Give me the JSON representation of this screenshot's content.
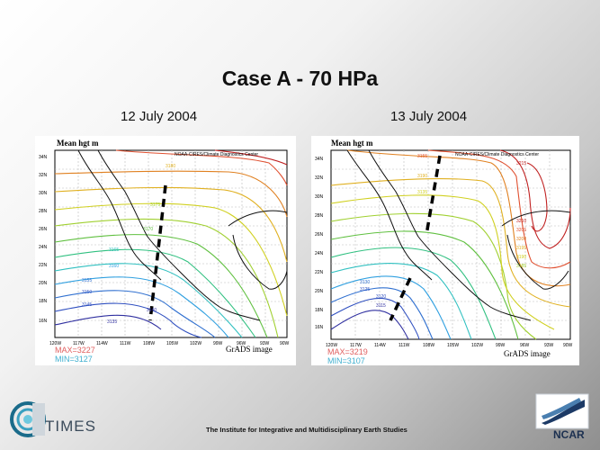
{
  "slide": {
    "title": "Case A - 70 HPa",
    "footer": "The Institute for Integrative and Multidisciplinary Earth Studies",
    "logo_left_text": "TIMES",
    "logo_right_text": "NCAR"
  },
  "maps": [
    {
      "date": "12 July 2004",
      "variable_label": "Mean hgt m",
      "source_label": "NOAA-CIRES/Climate Diagnostics Center",
      "lat_labels": [
        "34N",
        "32N",
        "30N",
        "28N",
        "26N",
        "24N",
        "22N",
        "20N",
        "18N",
        "16N"
      ],
      "lon_labels": [
        "120W",
        "117W",
        "114W",
        "111W",
        "108W",
        "105W",
        "102W",
        "99W",
        "96W",
        "93W",
        "90W"
      ],
      "contour_labels": [
        "3180",
        "3175",
        "3170",
        "3165",
        "3160",
        "3155",
        "3150",
        "3145",
        "3140",
        "3135"
      ],
      "max_label": "MAX=3227",
      "min_label": "MIN=3127",
      "grads_label": "GrADS image",
      "colors": {
        "max": "#e06060",
        "min": "#40b0d0"
      }
    },
    {
      "date": "13 July 2004",
      "variable_label": "Mean hgt m",
      "source_label": "NOAA-CIRES/Climate Diagnostics Center",
      "lat_labels": [
        "34N",
        "32N",
        "30N",
        "28N",
        "26N",
        "24N",
        "22N",
        "20N",
        "18N",
        "16N"
      ],
      "lon_labels": [
        "120W",
        "117W",
        "114W",
        "111W",
        "108W",
        "105W",
        "102W",
        "99W",
        "96W",
        "93W",
        "90W"
      ],
      "contour_labels": [
        "3215",
        "3210",
        "3205",
        "3200",
        "3195",
        "3190",
        "3185",
        "3155",
        "3190",
        "3135",
        "3130",
        "3125",
        "3120",
        "3115"
      ],
      "max_label": "MAX=3219",
      "min_label": "MIN=3107",
      "grads_label": "GrADS image",
      "colors": {
        "max": "#e06060",
        "min": "#40b0d0"
      }
    }
  ],
  "colors": {
    "palette": [
      "#3030a0",
      "#3050c0",
      "#3070d0",
      "#30a0e0",
      "#30c0c0",
      "#30c080",
      "#60c040",
      "#a0d030",
      "#d0d020",
      "#e0b020",
      "#e08020",
      "#e05030",
      "#c02020"
    ]
  }
}
